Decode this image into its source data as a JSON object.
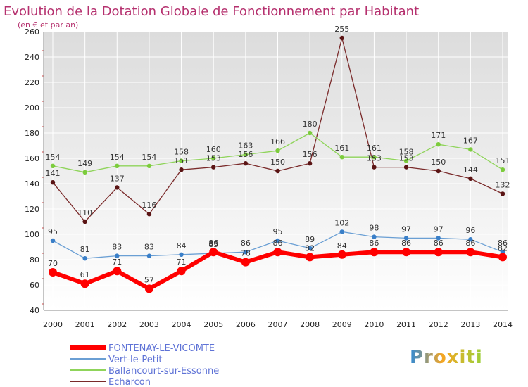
{
  "title": "Evolution de la Dotation Globale de Fonctionnement par Habitant",
  "subtitle": "(en € et par an)",
  "logo_text": "Proxiti",
  "colors": {
    "background_top": "#dcdcdc",
    "background_bottom": "#ffffff",
    "title": "#b5306e",
    "axis_text": "#222222",
    "grid": "#ffffff",
    "legend_text": "#5e72d6"
  },
  "chart_data": {
    "type": "line",
    "title": "Evolution de la Dotation Globale de Fonctionnement par Habitant",
    "subtitle": "(en € et par an)",
    "xlabel": "",
    "ylabel": "",
    "ylim": [
      40,
      260
    ],
    "yticks": [
      40,
      60,
      80,
      100,
      120,
      140,
      160,
      180,
      200,
      220,
      240,
      260
    ],
    "x": [
      "2000",
      "2001",
      "2002",
      "2003",
      "2004",
      "2005",
      "2006",
      "2007",
      "2008",
      "2009",
      "2010",
      "2011",
      "2012",
      "2013",
      "2014"
    ],
    "legend_position": "bottom-left",
    "series": [
      {
        "name": "Echarcon",
        "color": "#7a2a2a",
        "marker": "#5a1414",
        "width": 1.3,
        "values": [
          141,
          110,
          137,
          116,
          151,
          153,
          156,
          150,
          156,
          255,
          153,
          153,
          150,
          144,
          132
        ],
        "labels": [
          "141",
          "110",
          "137",
          "116",
          "151",
          "153",
          "156",
          "150",
          "156",
          "255",
          "153",
          "153",
          "150",
          "144",
          "132"
        ]
      },
      {
        "name": "Ballancourt-sur-Essonne",
        "color": "#8fd45a",
        "marker": "#7ccc3c",
        "width": 1.3,
        "values": [
          154,
          149,
          154,
          154,
          158,
          160,
          163,
          166,
          180,
          161,
          161,
          158,
          171,
          167,
          151
        ],
        "labels": [
          "154",
          "149",
          "154",
          "154",
          "158",
          "160",
          "163",
          "166",
          "180",
          "161",
          "161",
          "158",
          "171",
          "167",
          "151"
        ]
      },
      {
        "name": "Vert-le-Petit",
        "color": "#6a9fd4",
        "marker": "#3a7fc8",
        "width": 1.3,
        "values": [
          95,
          81,
          83,
          83,
          84,
          85,
          86,
          95,
          89,
          102,
          98,
          97,
          97,
          96,
          86
        ],
        "labels": [
          "95",
          "81",
          "83",
          "83",
          "84",
          "85",
          "86",
          "95",
          "89",
          "102",
          "98",
          "97",
          "97",
          "96",
          "86"
        ]
      },
      {
        "name": "FONTENAY-LE-VICOMTE",
        "color": "#ff0000",
        "marker": "#ff0000",
        "width": 6,
        "values": [
          70,
          61,
          71,
          57,
          71,
          86,
          78,
          86,
          82,
          84,
          86,
          86,
          86,
          86,
          82
        ],
        "labels": [
          "70",
          "61",
          "71",
          "57",
          "71",
          "86",
          "78",
          "86",
          "82",
          "84",
          "86",
          "86",
          "86",
          "86",
          "82"
        ]
      }
    ],
    "legend": [
      "FONTENAY-LE-VICOMTE",
      "Vert-le-Petit",
      "Ballancourt-sur-Essonne",
      "Echarcon"
    ]
  }
}
